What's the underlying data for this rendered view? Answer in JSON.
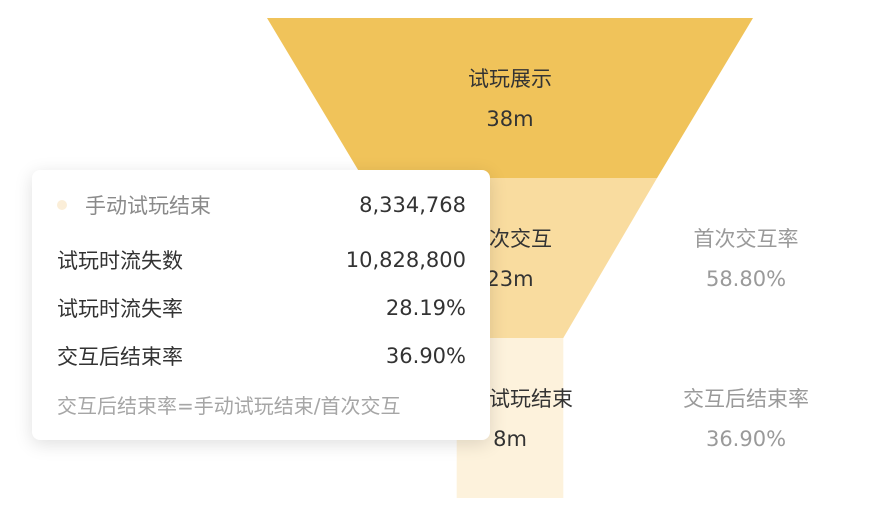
{
  "chart_data": {
    "type": "funnel",
    "stages": [
      {
        "name": "试玩展示",
        "value_label": "38m",
        "value": 38000000,
        "rate_label": "",
        "rate": ""
      },
      {
        "name": "首次交互",
        "value_label": "23m",
        "value": 23000000,
        "rate_label": "首次交互率",
        "rate": "58.80%"
      },
      {
        "name": "手动试玩结束",
        "value_label": "8m",
        "value": 8334768,
        "rate_label": "交互后结束率",
        "rate": "36.90%"
      }
    ],
    "colors": [
      "#f0c35a",
      "#f9dc9f",
      "#fdf2dc"
    ]
  },
  "tooltip": {
    "series_name": "手动试玩结束",
    "series_value": "8,334,768",
    "series_color": "#fbeed8",
    "rows": [
      {
        "label": "试玩时流失数",
        "value": "10,828,800"
      },
      {
        "label": "试玩时流失率",
        "value": "28.19%"
      },
      {
        "label": "交互后结束率",
        "value": "36.90%"
      }
    ],
    "formula": "交互后结束率=手动试玩结束/首次交互"
  }
}
